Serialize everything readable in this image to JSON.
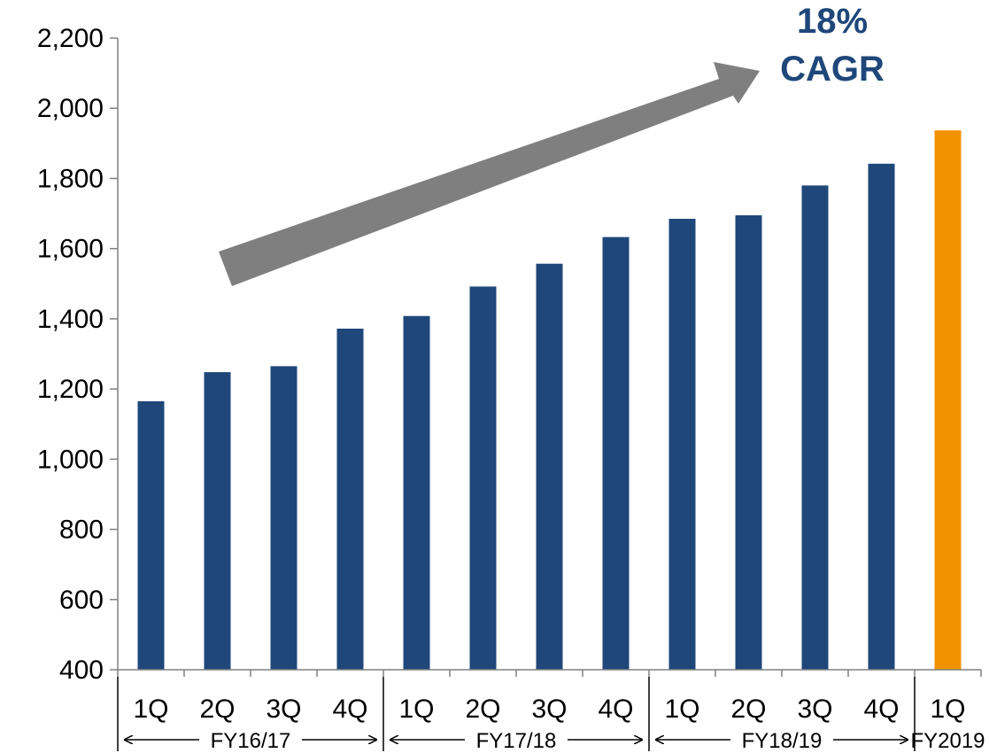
{
  "chart_data": {
    "type": "bar",
    "categories": [
      "1Q",
      "2Q",
      "3Q",
      "4Q",
      "1Q",
      "2Q",
      "3Q",
      "4Q",
      "1Q",
      "2Q",
      "3Q",
      "4Q",
      "1Q"
    ],
    "groups": [
      {
        "label": "FY16/17",
        "start": 0,
        "end": 3
      },
      {
        "label": "FY17/18",
        "start": 4,
        "end": 7
      },
      {
        "label": "FY18/19",
        "start": 8,
        "end": 11
      },
      {
        "label": "FY2019",
        "start": 12,
        "end": 12
      }
    ],
    "values": [
      1165,
      1248,
      1265,
      1372,
      1408,
      1492,
      1557,
      1633,
      1685,
      1695,
      1780,
      1842,
      1937
    ],
    "bar_colors": [
      "#1f477a",
      "#1f477a",
      "#1f477a",
      "#1f477a",
      "#1f477a",
      "#1f477a",
      "#1f477a",
      "#1f477a",
      "#1f477a",
      "#1f477a",
      "#1f477a",
      "#1f477a",
      "#f39200"
    ],
    "ylim": [
      400,
      2200
    ],
    "yticks": [
      400,
      600,
      800,
      1000,
      1200,
      1400,
      1600,
      1800,
      2000,
      2200
    ],
    "ytick_labels": [
      "400",
      "600",
      "800",
      "1,000",
      "1,200",
      "1,400",
      "1,600",
      "1,800",
      "2,000",
      "2,200"
    ],
    "annotation": {
      "line1": "18%",
      "line2": "CAGR",
      "color": "#1f477a"
    },
    "trend_arrow_color": "#7f7f7f",
    "axis_color": "#808080",
    "grid": false,
    "legend": "none"
  }
}
